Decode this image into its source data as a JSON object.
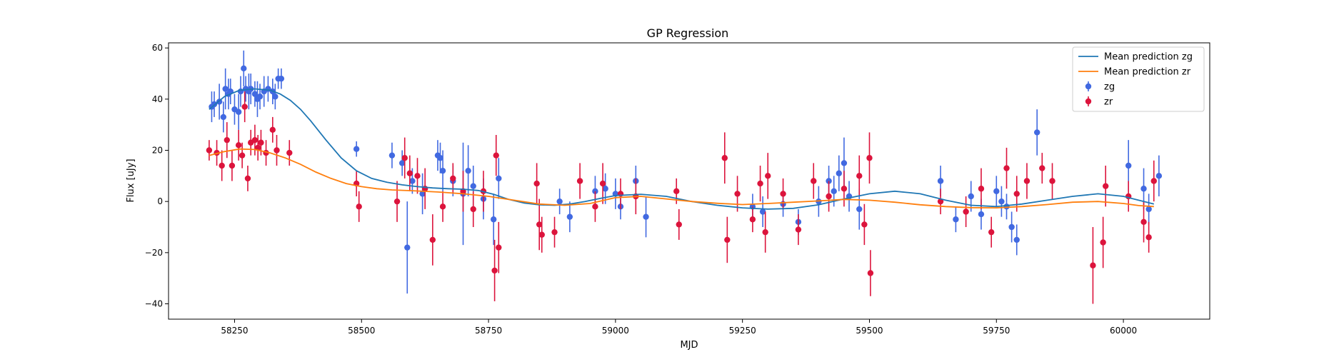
{
  "chart_data": {
    "type": "scatter",
    "title": "GP Regression",
    "xlabel": "MJD",
    "ylabel": "Flux [uJy]",
    "xlim": [
      58120,
      60170
    ],
    "ylim": [
      -46,
      62
    ],
    "xticks": [
      58250,
      58500,
      58750,
      59000,
      59250,
      59500,
      59750,
      60000
    ],
    "yticks": [
      -40,
      -20,
      0,
      20,
      40,
      60
    ],
    "grid": false,
    "legend_position": "top-right",
    "colors": {
      "zg_line": "#1f77b4",
      "zr_line": "#ff7f0e",
      "zg_points": "#4169e1",
      "zr_points": "#dc143c"
    },
    "series": [
      {
        "name": "Mean prediction zg",
        "kind": "line",
        "color": "#1f77b4",
        "x": [
          58200,
          58230,
          58260,
          58290,
          58320,
          58340,
          58360,
          58380,
          58400,
          58430,
          58460,
          58490,
          58520,
          58550,
          58580,
          58610,
          58640,
          58670,
          58700,
          58730,
          58760,
          58790,
          58820,
          58850,
          58880,
          58910,
          58940,
          58970,
          59000,
          59050,
          59100,
          59150,
          59200,
          59250,
          59300,
          59350,
          59400,
          59450,
          59500,
          59550,
          59600,
          59650,
          59700,
          59750,
          59800,
          59850,
          59900,
          59950,
          60000,
          60030,
          60060
        ],
        "y": [
          36,
          41,
          43.5,
          44,
          43.5,
          42,
          39.5,
          36,
          31.5,
          24,
          17,
          12,
          9,
          7.5,
          6.5,
          5.8,
          5.3,
          5,
          4.8,
          4.3,
          2.8,
          0.8,
          -0.6,
          -1.3,
          -1.5,
          -1,
          0,
          1.2,
          2.3,
          2.8,
          2,
          0,
          -1.5,
          -2.5,
          -3,
          -2.7,
          -1.3,
          1,
          3,
          4,
          3,
          0.5,
          -1.5,
          -2,
          -1,
          0.5,
          2,
          3,
          2,
          0.5,
          -1
        ]
      },
      {
        "name": "Mean prediction zr",
        "kind": "line",
        "color": "#ff7f0e",
        "x": [
          58200,
          58230,
          58260,
          58290,
          58320,
          58350,
          58380,
          58410,
          58440,
          58470,
          58500,
          58530,
          58560,
          58600,
          58650,
          58700,
          58750,
          58800,
          58850,
          58900,
          58950,
          59000,
          59050,
          59100,
          59150,
          59200,
          59250,
          59300,
          59350,
          59400,
          59450,
          59500,
          59550,
          59600,
          59650,
          59700,
          59750,
          59800,
          59850,
          59900,
          59950,
          60000,
          60030,
          60060
        ],
        "y": [
          18,
          19.5,
          20.5,
          20.3,
          19,
          17,
          14.5,
          11.5,
          9,
          7,
          5.8,
          5,
          4.5,
          4.2,
          3.7,
          3,
          2,
          0.5,
          -1,
          -1.5,
          -0.8,
          1.5,
          2,
          1,
          0,
          -0.7,
          -1.2,
          -0.8,
          -0.3,
          0.2,
          0.8,
          0.5,
          -0.3,
          -1.3,
          -2,
          -2.4,
          -2.5,
          -2,
          -1.2,
          -0.3,
          0,
          -0.8,
          -1.6,
          -2
        ]
      },
      {
        "name": "zg",
        "kind": "errorbar",
        "color": "#4169e1",
        "points": [
          [
            58205,
            37,
            6
          ],
          [
            58210,
            38,
            5
          ],
          [
            58220,
            39,
            7
          ],
          [
            58228,
            33,
            6
          ],
          [
            58232,
            44,
            8
          ],
          [
            58238,
            42,
            6
          ],
          [
            58242,
            43,
            5
          ],
          [
            58250,
            36,
            6
          ],
          [
            58258,
            35,
            7
          ],
          [
            58262,
            43,
            6
          ],
          [
            58268,
            52,
            7
          ],
          [
            58272,
            44,
            5
          ],
          [
            58278,
            43,
            7
          ],
          [
            58282,
            44,
            6
          ],
          [
            58290,
            42,
            5
          ],
          [
            58295,
            40,
            7
          ],
          [
            58300,
            41,
            5
          ],
          [
            58308,
            43,
            6
          ],
          [
            58316,
            44,
            5
          ],
          [
            58325,
            43,
            5
          ],
          [
            58330,
            41,
            5
          ],
          [
            58336,
            48,
            4
          ],
          [
            58342,
            48,
            4
          ],
          [
            58490,
            20.5,
            3
          ],
          [
            58560,
            18,
            5
          ],
          [
            58580,
            15,
            5
          ],
          [
            58590,
            -18,
            18
          ],
          [
            58600,
            8,
            5
          ],
          [
            58620,
            3,
            8
          ],
          [
            58650,
            18,
            6
          ],
          [
            58655,
            17,
            6
          ],
          [
            58660,
            12,
            8
          ],
          [
            58680,
            8,
            6
          ],
          [
            58700,
            3,
            20
          ],
          [
            58710,
            12,
            10
          ],
          [
            58720,
            6,
            8
          ],
          [
            58740,
            1,
            8
          ],
          [
            58760,
            -7,
            10
          ],
          [
            58770,
            9,
            8
          ],
          [
            58890,
            0,
            5
          ],
          [
            58910,
            -6,
            6
          ],
          [
            58960,
            4,
            6
          ],
          [
            58980,
            5,
            6
          ],
          [
            59000,
            3,
            6
          ],
          [
            59010,
            -2,
            5
          ],
          [
            59040,
            8,
            6
          ],
          [
            59060,
            -6,
            8
          ],
          [
            59270,
            -2,
            5
          ],
          [
            59290,
            -4,
            6
          ],
          [
            59330,
            -1,
            5
          ],
          [
            59360,
            -8,
            5
          ],
          [
            59400,
            0,
            6
          ],
          [
            59420,
            8,
            6
          ],
          [
            59430,
            4,
            6
          ],
          [
            59440,
            11,
            7
          ],
          [
            59450,
            15,
            10
          ],
          [
            59460,
            2,
            6
          ],
          [
            59480,
            -3,
            8
          ],
          [
            59640,
            8,
            6
          ],
          [
            59670,
            -7,
            5
          ],
          [
            59700,
            2,
            6
          ],
          [
            59720,
            -5,
            6
          ],
          [
            59750,
            4,
            6
          ],
          [
            59760,
            0,
            6
          ],
          [
            59770,
            -2,
            5
          ],
          [
            59780,
            -10,
            6
          ],
          [
            59790,
            -15,
            6
          ],
          [
            59830,
            27,
            9
          ],
          [
            60010,
            14,
            10
          ],
          [
            60040,
            5,
            8
          ],
          [
            60050,
            -3,
            6
          ],
          [
            60070,
            10,
            8
          ]
        ]
      },
      {
        "name": "zr",
        "kind": "errorbar",
        "color": "#dc143c",
        "points": [
          [
            58200,
            20,
            4
          ],
          [
            58215,
            19,
            5
          ],
          [
            58225,
            14,
            6
          ],
          [
            58235,
            24,
            7
          ],
          [
            58245,
            14,
            6
          ],
          [
            58258,
            22,
            6
          ],
          [
            58265,
            18,
            5
          ],
          [
            58270,
            37,
            6
          ],
          [
            58276,
            9,
            5
          ],
          [
            58282,
            23,
            5
          ],
          [
            58290,
            24,
            6
          ],
          [
            58296,
            21,
            5
          ],
          [
            58302,
            23,
            5
          ],
          [
            58312,
            19,
            5
          ],
          [
            58325,
            28,
            5
          ],
          [
            58333,
            20,
            6
          ],
          [
            58358,
            19,
            5
          ],
          [
            58490,
            7,
            5
          ],
          [
            58495,
            -2,
            6
          ],
          [
            58570,
            0,
            8
          ],
          [
            58585,
            17,
            8
          ],
          [
            58595,
            11,
            7
          ],
          [
            58610,
            10,
            7
          ],
          [
            58625,
            5,
            8
          ],
          [
            58640,
            -15,
            10
          ],
          [
            58660,
            -2,
            6
          ],
          [
            58680,
            9,
            6
          ],
          [
            58700,
            4,
            8
          ],
          [
            58720,
            -3,
            7
          ],
          [
            58740,
            4,
            8
          ],
          [
            58762,
            -27,
            12
          ],
          [
            58765,
            18,
            8
          ],
          [
            58770,
            -18,
            10
          ],
          [
            58845,
            7,
            8
          ],
          [
            58850,
            -9,
            10
          ],
          [
            58855,
            -13,
            7
          ],
          [
            58880,
            -12,
            6
          ],
          [
            58930,
            8,
            7
          ],
          [
            58960,
            -2,
            6
          ],
          [
            58975,
            7,
            8
          ],
          [
            59010,
            3,
            6
          ],
          [
            59040,
            2,
            7
          ],
          [
            59120,
            4,
            5
          ],
          [
            59125,
            -9,
            6
          ],
          [
            59215,
            17,
            10
          ],
          [
            59220,
            -15,
            9
          ],
          [
            59240,
            3,
            7
          ],
          [
            59270,
            -7,
            5
          ],
          [
            59285,
            7,
            7
          ],
          [
            59295,
            -12,
            8
          ],
          [
            59300,
            10,
            9
          ],
          [
            59330,
            3,
            6
          ],
          [
            59360,
            -11,
            6
          ],
          [
            59390,
            8,
            7
          ],
          [
            59420,
            2,
            6
          ],
          [
            59450,
            5,
            7
          ],
          [
            59480,
            10,
            8
          ],
          [
            59490,
            -9,
            8
          ],
          [
            59500,
            17,
            10
          ],
          [
            59502,
            -28,
            9
          ],
          [
            59640,
            0,
            5
          ],
          [
            59690,
            -4,
            6
          ],
          [
            59720,
            5,
            8
          ],
          [
            59740,
            -12,
            6
          ],
          [
            59770,
            13,
            8
          ],
          [
            59790,
            3,
            7
          ],
          [
            59810,
            8,
            7
          ],
          [
            59840,
            13,
            6
          ],
          [
            59860,
            8,
            7
          ],
          [
            59940,
            -25,
            15
          ],
          [
            59960,
            -16,
            10
          ],
          [
            59965,
            6,
            8
          ],
          [
            60010,
            2,
            6
          ],
          [
            60040,
            -8,
            8
          ],
          [
            60050,
            -14,
            6
          ],
          [
            60060,
            8,
            8
          ]
        ]
      }
    ]
  }
}
